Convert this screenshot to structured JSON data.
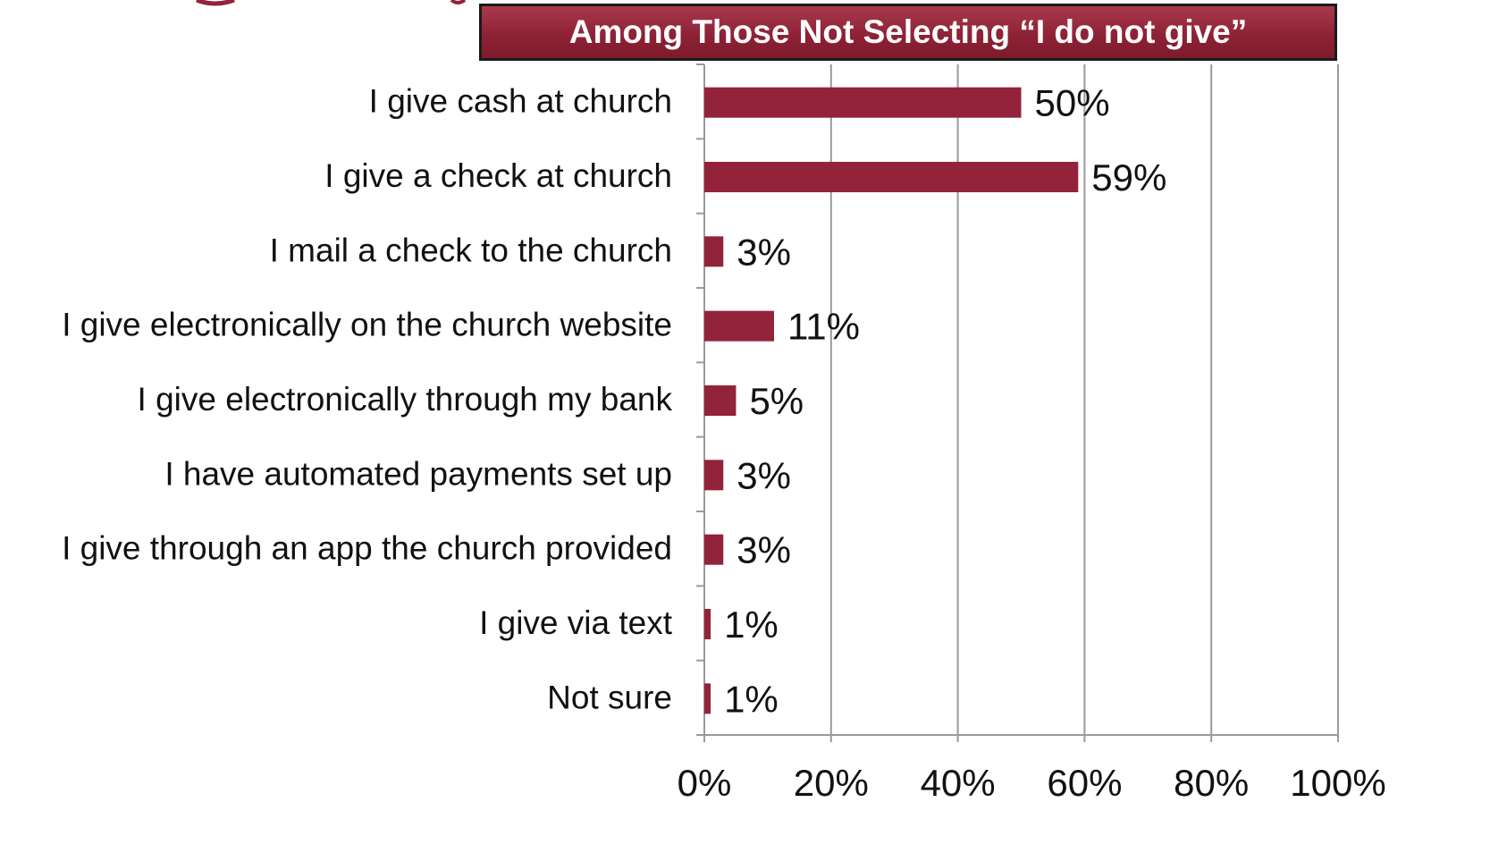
{
  "chart_data": {
    "type": "bar",
    "orientation": "horizontal",
    "title": "Among Those Not Selecting “I do not give”",
    "categories": [
      "I give cash at church",
      "I give a check at church",
      "I mail a check to the church",
      "I give electronically on the church website",
      "I give electronically through my bank",
      "I have automated payments set up",
      "I give through an app the church provided",
      "I give via text",
      "Not sure"
    ],
    "values": [
      50,
      59,
      3,
      11,
      5,
      3,
      3,
      1,
      1
    ],
    "value_labels": [
      "50%",
      "59%",
      "3%",
      "11%",
      "5%",
      "3%",
      "3%",
      "1%",
      "1%"
    ],
    "xlim": [
      0,
      100
    ],
    "x_ticks": [
      0,
      20,
      40,
      60,
      80,
      100
    ],
    "x_tick_labels": [
      "0%",
      "20%",
      "40%",
      "60%",
      "80%",
      "100%"
    ],
    "xlabel": "",
    "ylabel": "",
    "grid": "vertical",
    "legend": "none",
    "colors": {
      "bar": "#93233a",
      "grid": "#9a9a9a",
      "title_bg": "#93233a",
      "title_border": "#1a1a1a"
    }
  }
}
